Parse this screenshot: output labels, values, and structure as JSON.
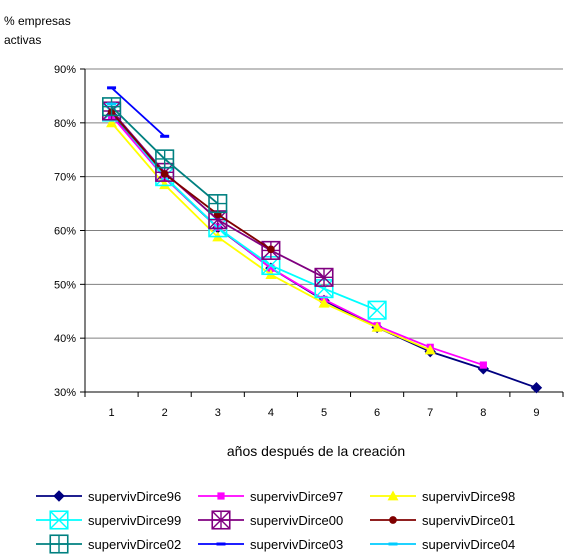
{
  "chart_data": {
    "type": "line",
    "ylabel": "% empresas activas",
    "xlabel": "años después de la creación",
    "x": [
      1,
      2,
      3,
      4,
      5,
      6,
      7,
      8,
      9
    ],
    "y_ticks": [
      "30%",
      "40%",
      "50%",
      "60%",
      "70%",
      "80%",
      "90%"
    ],
    "ylim": [
      30,
      90
    ],
    "grid": true,
    "legend_position": "bottom",
    "series": [
      {
        "name": "supervivDirce96",
        "color": "#000080",
        "marker": "diamond",
        "values": [
          81.5,
          69.8,
          60.5,
          53.0,
          47.0,
          42.0,
          37.5,
          34.3,
          30.8
        ]
      },
      {
        "name": "supervivDirce97",
        "color": "#FF00FF",
        "marker": "square",
        "values": [
          81.3,
          69.8,
          60.6,
          53.0,
          47.2,
          42.3,
          38.3,
          35.0,
          null
        ]
      },
      {
        "name": "supervivDirce98",
        "color": "#FFFF00",
        "marker": "triangle",
        "values": [
          80.0,
          68.5,
          58.8,
          51.8,
          46.5,
          42.0,
          37.8,
          null,
          null
        ]
      },
      {
        "name": "supervivDirce99",
        "color": "#00FFFF",
        "marker": "boxx",
        "values": [
          82.0,
          70.0,
          60.5,
          53.5,
          49.2,
          45.2,
          null,
          null,
          null
        ]
      },
      {
        "name": "supervivDirce00",
        "color": "#800080",
        "marker": "boxstar",
        "values": [
          82.2,
          70.8,
          62.0,
          56.3,
          51.3,
          null,
          null,
          null,
          null
        ]
      },
      {
        "name": "supervivDirce01",
        "color": "#800000",
        "marker": "circle",
        "values": [
          82.0,
          70.5,
          63.0,
          56.5,
          null,
          null,
          null,
          null,
          null
        ]
      },
      {
        "name": "supervivDirce02",
        "color": "#008080",
        "marker": "boxplus",
        "values": [
          83.0,
          73.3,
          65.0,
          null,
          null,
          null,
          null,
          null,
          null
        ]
      },
      {
        "name": "supervivDirce03",
        "color": "#0000FF",
        "marker": "dash",
        "values": [
          86.5,
          77.5,
          null,
          null,
          null,
          null,
          null,
          null,
          null
        ]
      },
      {
        "name": "supervivDirce04",
        "color": "#00CCFF",
        "marker": "dash",
        "values": [
          83.5,
          null,
          null,
          null,
          null,
          null,
          null,
          null,
          null
        ]
      }
    ]
  }
}
